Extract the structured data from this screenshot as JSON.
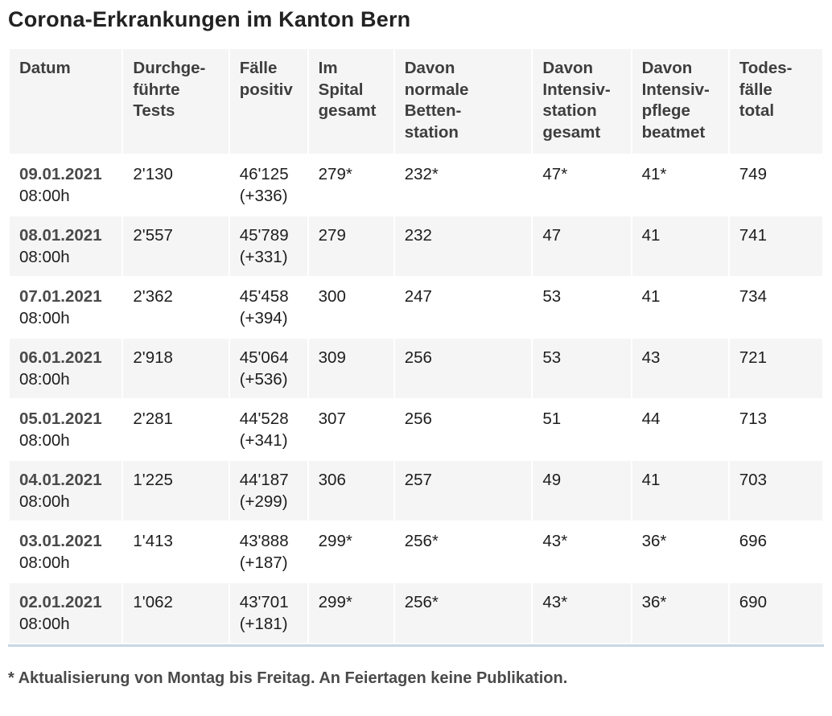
{
  "page": {
    "title": "Corona-Erkrankungen im Kanton Bern",
    "footnote": "* Aktualisierung von Montag bis Freitag. An Feiertagen keine Publikation."
  },
  "colors": {
    "title_text": "#222222",
    "header_text": "#3e3e3e",
    "date_text": "#4a4a4a",
    "cell_text": "#1d1d1d",
    "header_bg": "#f6f5f5",
    "row_alt_bg": "#f6f5f5",
    "row_bg": "#ffffff",
    "table_bottom_border": "#c7d7e6"
  },
  "chart_data": {
    "type": "table",
    "title": "Corona-Erkrankungen im Kanton Bern",
    "columns": [
      "Datum",
      "Durchge-\nführte\nTests",
      "Fälle\npositiv",
      "Im\nSpital\ngesamt",
      "Davon\nnormale\nBetten-\nstation",
      "Davon\nIntensiv-\nstation\ngesamt",
      "Davon\nIntensiv-\npflege\nbeatmet",
      "Todes-\nfälle\ntotal"
    ],
    "rows": [
      {
        "date": "09.01.2021",
        "time": "08:00h",
        "tests": "2'130",
        "positive": "46'125\n(+336)",
        "hospital": "279*",
        "normal_ward": "232*",
        "icu_total": "47*",
        "icu_ventilated": "41*",
        "deaths": "749"
      },
      {
        "date": "08.01.2021",
        "time": "08:00h",
        "tests": "2'557",
        "positive": "45'789\n(+331)",
        "hospital": "279",
        "normal_ward": "232",
        "icu_total": "47",
        "icu_ventilated": "41",
        "deaths": "741"
      },
      {
        "date": "07.01.2021",
        "time": "08:00h",
        "tests": "2'362",
        "positive": "45'458\n(+394)",
        "hospital": "300",
        "normal_ward": "247",
        "icu_total": "53",
        "icu_ventilated": "41",
        "deaths": "734"
      },
      {
        "date": "06.01.2021",
        "time": "08:00h",
        "tests": "2'918",
        "positive": "45'064\n(+536)",
        "hospital": "309",
        "normal_ward": "256",
        "icu_total": "53",
        "icu_ventilated": "43",
        "deaths": "721"
      },
      {
        "date": "05.01.2021",
        "time": "08:00h",
        "tests": "2'281",
        "positive": "44'528\n(+341)",
        "hospital": "307",
        "normal_ward": "256",
        "icu_total": "51",
        "icu_ventilated": "44",
        "deaths": "713"
      },
      {
        "date": "04.01.2021",
        "time": "08:00h",
        "tests": "1'225",
        "positive": "44'187\n(+299)",
        "hospital": "306",
        "normal_ward": "257",
        "icu_total": "49",
        "icu_ventilated": "41",
        "deaths": "703"
      },
      {
        "date": "03.01.2021",
        "time": "08:00h",
        "tests": "1'413",
        "positive": "43'888\n(+187)",
        "hospital": "299*",
        "normal_ward": "256*",
        "icu_total": "43*",
        "icu_ventilated": "36*",
        "deaths": "696"
      },
      {
        "date": "02.01.2021",
        "time": "08:00h",
        "tests": "1'062",
        "positive": "43'701\n(+181)",
        "hospital": "299*",
        "normal_ward": "256*",
        "icu_total": "43*",
        "icu_ventilated": "36*",
        "deaths": "690"
      }
    ],
    "footnote": "* Aktualisierung von Montag bis Freitag. An Feiertagen keine Publikation."
  }
}
